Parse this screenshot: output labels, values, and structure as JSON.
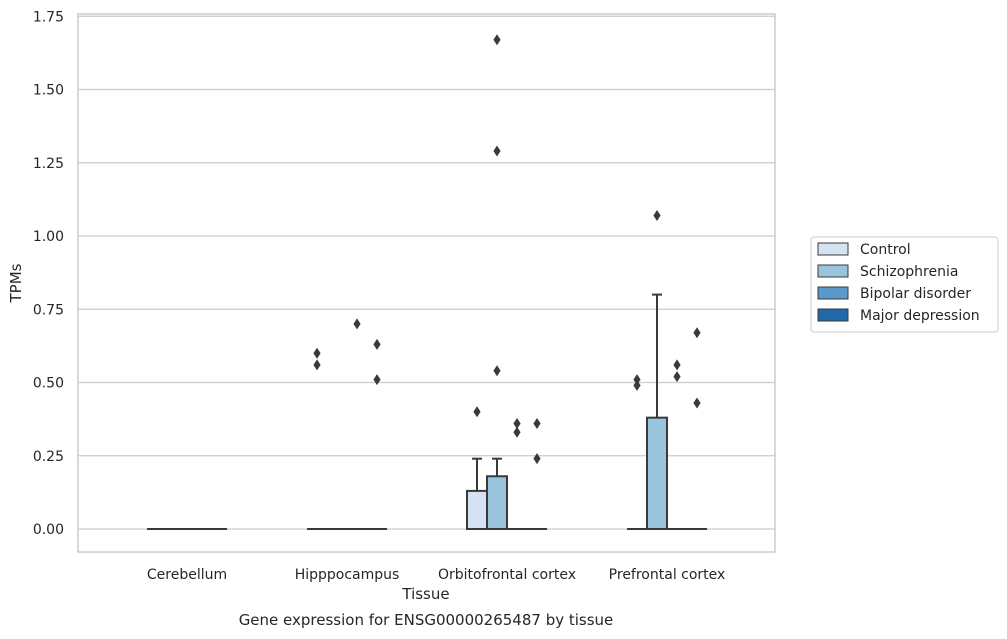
{
  "chart_data": {
    "type": "box",
    "caption": "Gene expression for ENSG00000265487 by tissue",
    "xlabel": "Tissue",
    "ylabel": "TPMs",
    "ylim": [
      -0.08,
      1.75
    ],
    "yticks": [
      "0.00",
      "0.25",
      "0.50",
      "0.75",
      "1.00",
      "1.25",
      "1.50",
      "1.75"
    ],
    "ytick_values": [
      0,
      0.25,
      0.5,
      0.75,
      1.0,
      1.25,
      1.5,
      1.75
    ],
    "grid": true,
    "legend_position": "right",
    "categories": [
      "Cerebellum",
      "Hipppocampus",
      "Orbitofrontal cortex",
      "Prefrontal cortex"
    ],
    "series": [
      {
        "name": "Control",
        "color": "#d4e2f1",
        "boxes": [
          {
            "category": "Cerebellum",
            "q1": 0,
            "median": 0,
            "q3": 0,
            "whisker_low": 0,
            "whisker_high": 0,
            "outliers": []
          },
          {
            "category": "Hipppocampus",
            "q1": 0,
            "median": 0,
            "q3": 0,
            "whisker_low": 0,
            "whisker_high": 0,
            "outliers": [
              0.56,
              0.6
            ]
          },
          {
            "category": "Orbitofrontal cortex",
            "q1": 0,
            "median": 0,
            "q3": 0.13,
            "whisker_low": 0,
            "whisker_high": 0.24,
            "outliers": [
              0.4
            ]
          },
          {
            "category": "Prefrontal cortex",
            "q1": 0,
            "median": 0,
            "q3": 0,
            "whisker_low": 0,
            "whisker_high": 0,
            "outliers": [
              0.49,
              0.51
            ]
          }
        ]
      },
      {
        "name": "Schizophrenia",
        "color": "#9ac3dc",
        "boxes": [
          {
            "category": "Cerebellum",
            "q1": 0,
            "median": 0,
            "q3": 0,
            "whisker_low": 0,
            "whisker_high": 0,
            "outliers": []
          },
          {
            "category": "Hipppocampus",
            "q1": 0,
            "median": 0,
            "q3": 0,
            "whisker_low": 0,
            "whisker_high": 0,
            "outliers": []
          },
          {
            "category": "Orbitofrontal cortex",
            "q1": 0,
            "median": 0,
            "q3": 0.18,
            "whisker_low": 0,
            "whisker_high": 0.24,
            "outliers": [
              0.54,
              1.29,
              1.67
            ]
          },
          {
            "category": "Prefrontal cortex",
            "q1": 0,
            "median": 0,
            "q3": 0.38,
            "whisker_low": 0,
            "whisker_high": 0.8,
            "outliers": [
              1.07
            ]
          }
        ]
      },
      {
        "name": "Bipolar disorder",
        "color": "#5a9ac9",
        "boxes": [
          {
            "category": "Cerebellum",
            "q1": 0,
            "median": 0,
            "q3": 0,
            "whisker_low": 0,
            "whisker_high": 0,
            "outliers": []
          },
          {
            "category": "Hipppocampus",
            "q1": 0,
            "median": 0,
            "q3": 0,
            "whisker_low": 0,
            "whisker_high": 0,
            "outliers": [
              0.7
            ]
          },
          {
            "category": "Orbitofrontal cortex",
            "q1": 0,
            "median": 0,
            "q3": 0,
            "whisker_low": 0,
            "whisker_high": 0,
            "outliers": [
              0.33,
              0.36
            ]
          },
          {
            "category": "Prefrontal cortex",
            "q1": 0,
            "median": 0,
            "q3": 0,
            "whisker_low": 0,
            "whisker_high": 0,
            "outliers": [
              0.52,
              0.56
            ]
          }
        ]
      },
      {
        "name": "Major depression",
        "color": "#2068a8",
        "boxes": [
          {
            "category": "Cerebellum",
            "q1": 0,
            "median": 0,
            "q3": 0,
            "whisker_low": 0,
            "whisker_high": 0,
            "outliers": []
          },
          {
            "category": "Hipppocampus",
            "q1": 0,
            "median": 0,
            "q3": 0,
            "whisker_low": 0,
            "whisker_high": 0,
            "outliers": [
              0.51,
              0.63
            ]
          },
          {
            "category": "Orbitofrontal cortex",
            "q1": 0,
            "median": 0,
            "q3": 0,
            "whisker_low": 0,
            "whisker_high": 0,
            "outliers": [
              0.24,
              0.36
            ]
          },
          {
            "category": "Prefrontal cortex",
            "q1": 0,
            "median": 0,
            "q3": 0,
            "whisker_low": 0,
            "whisker_high": 0,
            "outliers": [
              0.43,
              0.67
            ]
          }
        ]
      }
    ]
  }
}
